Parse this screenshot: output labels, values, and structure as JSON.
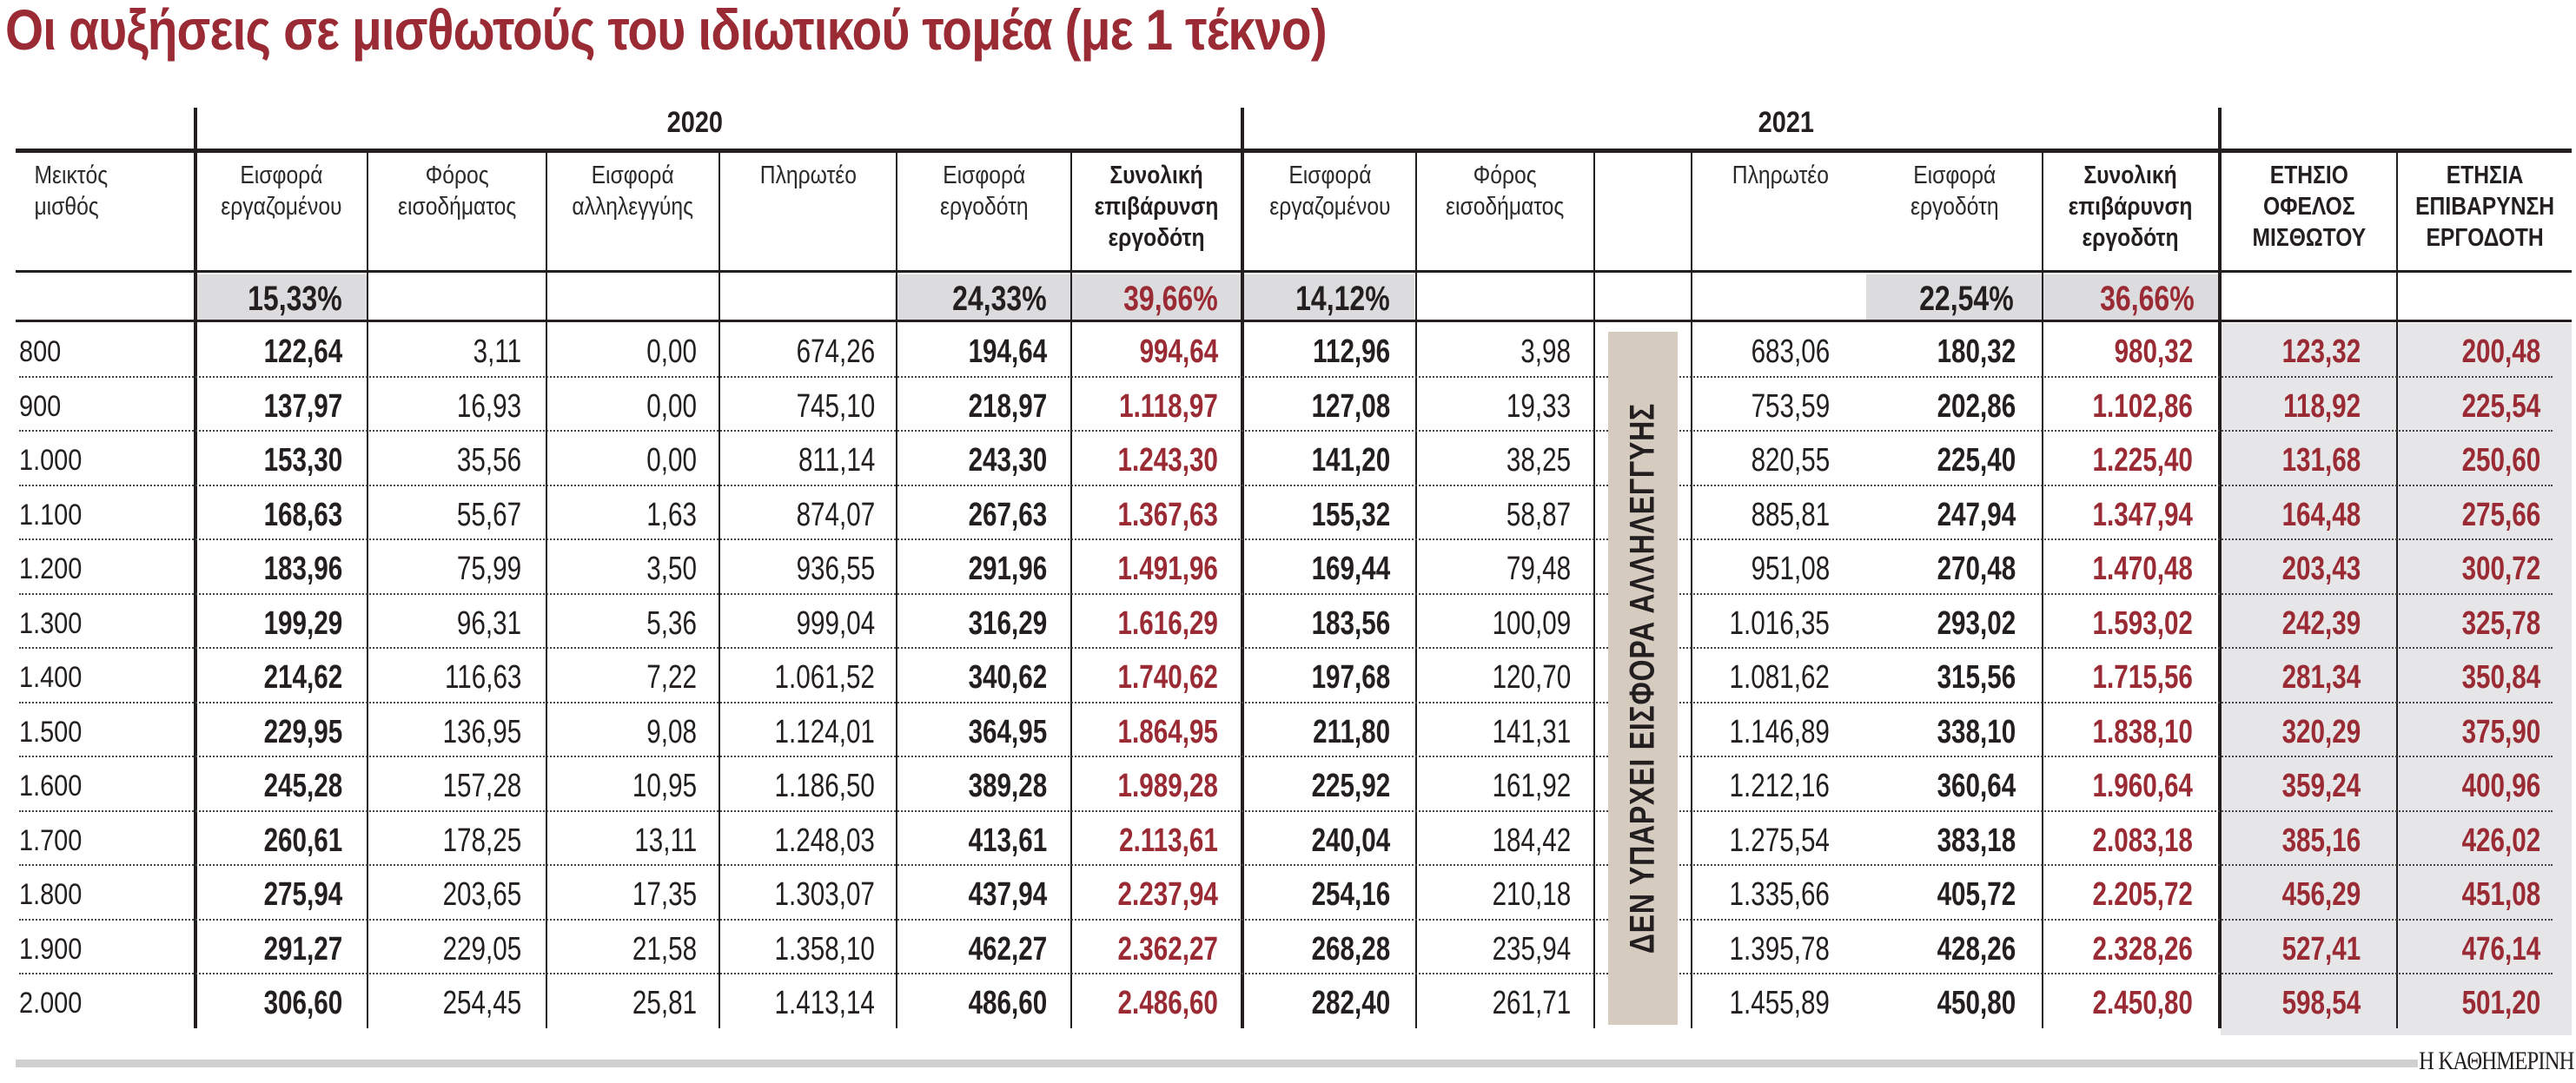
{
  "title": "Οι αυξήσεις σε μισθωτούς του ιδιωτικού τομέα (με 1 τέκνο)",
  "years": {
    "y2020": "2020",
    "y2021": "2021"
  },
  "headers": {
    "gross": "Μεικτός\nμισθός",
    "y2020": {
      "employee_contrib": "Εισφορά\nεργαζομένου",
      "income_tax": "Φόρος\nεισοδήματος",
      "solidarity": "Εισφορά\nαλληλεγγύης",
      "net": "Πληρωτέο",
      "employer_contrib": "Εισφορά\nεργοδότη",
      "total_cost": "Συνολική\nεπιβάρυνση\nεργοδότη"
    },
    "y2021": {
      "employee_contrib": "Εισφορά\nεργαζομένου",
      "income_tax": "Φόρος\nεισοδήματος",
      "solidarity": "",
      "net": "Πληρωτέο",
      "employer_contrib": "Εισφορά\nεργοδότη",
      "total_cost": "Συνολική\nεπιβάρυνση\nεργοδότη"
    },
    "annual_benefit": "ΕΤΗΣΙΟ\nΟΦΕΛΟΣ\nΜΙΣΘΩΤΟΥ",
    "annual_cost": "ΕΤΗΣΙΑ\nΕΠΙΒΑΡΥΝΣΗ\nΕΡΓΟΔΟΤΗ"
  },
  "rates": {
    "y2020_employee": "15,33%",
    "y2020_employer": "24,33%",
    "y2020_total": "39,66%",
    "y2021_employee": "14,12%",
    "y2021_employer": "22,54%",
    "y2021_total": "36,66%"
  },
  "banner": "ΔΕΝ ΥΠΑΡΧΕΙ ΕΙΣΦΟΡΑ ΑΛΛΗΛΕΓΓΥΗΣ",
  "brand": "Η ΚΑΘΗΜΕΡΙΝΗ",
  "colors": {
    "accent": "#9a2a33",
    "rate_fill": "#dcdcde",
    "summary_fill": "#e6e6e8",
    "banner_fill": "#d6cbbf"
  },
  "rows": [
    [
      "800",
      "122,64",
      "3,11",
      "0,00",
      "674,26",
      "194,64",
      "994,64",
      "112,96",
      "3,98",
      "683,06",
      "180,32",
      "980,32",
      "123,32",
      "200,48"
    ],
    [
      "900",
      "137,97",
      "16,93",
      "0,00",
      "745,10",
      "218,97",
      "1.118,97",
      "127,08",
      "19,33",
      "753,59",
      "202,86",
      "1.102,86",
      "118,92",
      "225,54"
    ],
    [
      "1.000",
      "153,30",
      "35,56",
      "0,00",
      "811,14",
      "243,30",
      "1.243,30",
      "141,20",
      "38,25",
      "820,55",
      "225,40",
      "1.225,40",
      "131,68",
      "250,60"
    ],
    [
      "1.100",
      "168,63",
      "55,67",
      "1,63",
      "874,07",
      "267,63",
      "1.367,63",
      "155,32",
      "58,87",
      "885,81",
      "247,94",
      "1.347,94",
      "164,48",
      "275,66"
    ],
    [
      "1.200",
      "183,96",
      "75,99",
      "3,50",
      "936,55",
      "291,96",
      "1.491,96",
      "169,44",
      "79,48",
      "951,08",
      "270,48",
      "1.470,48",
      "203,43",
      "300,72"
    ],
    [
      "1.300",
      "199,29",
      "96,31",
      "5,36",
      "999,04",
      "316,29",
      "1.616,29",
      "183,56",
      "100,09",
      "1.016,35",
      "293,02",
      "1.593,02",
      "242,39",
      "325,78"
    ],
    [
      "1.400",
      "214,62",
      "116,63",
      "7,22",
      "1.061,52",
      "340,62",
      "1.740,62",
      "197,68",
      "120,70",
      "1.081,62",
      "315,56",
      "1.715,56",
      "281,34",
      "350,84"
    ],
    [
      "1.500",
      "229,95",
      "136,95",
      "9,08",
      "1.124,01",
      "364,95",
      "1.864,95",
      "211,80",
      "141,31",
      "1.146,89",
      "338,10",
      "1.838,10",
      "320,29",
      "375,90"
    ],
    [
      "1.600",
      "245,28",
      "157,28",
      "10,95",
      "1.186,50",
      "389,28",
      "1.989,28",
      "225,92",
      "161,92",
      "1.212,16",
      "360,64",
      "1.960,64",
      "359,24",
      "400,96"
    ],
    [
      "1.700",
      "260,61",
      "178,25",
      "13,11",
      "1.248,03",
      "413,61",
      "2.113,61",
      "240,04",
      "184,42",
      "1.275,54",
      "383,18",
      "2.083,18",
      "385,16",
      "426,02"
    ],
    [
      "1.800",
      "275,94",
      "203,65",
      "17,35",
      "1.303,07",
      "437,94",
      "2.237,94",
      "254,16",
      "210,18",
      "1.335,66",
      "405,72",
      "2.205,72",
      "456,29",
      "451,08"
    ],
    [
      "1.900",
      "291,27",
      "229,05",
      "21,58",
      "1.358,10",
      "462,27",
      "2.362,27",
      "268,28",
      "235,94",
      "1.395,78",
      "428,26",
      "2.328,26",
      "527,41",
      "476,14"
    ],
    [
      "2.000",
      "306,60",
      "254,45",
      "25,81",
      "1.413,14",
      "486,60",
      "2.486,60",
      "282,40",
      "261,71",
      "1.455,89",
      "450,80",
      "2.450,80",
      "598,54",
      "501,20"
    ]
  ]
}
